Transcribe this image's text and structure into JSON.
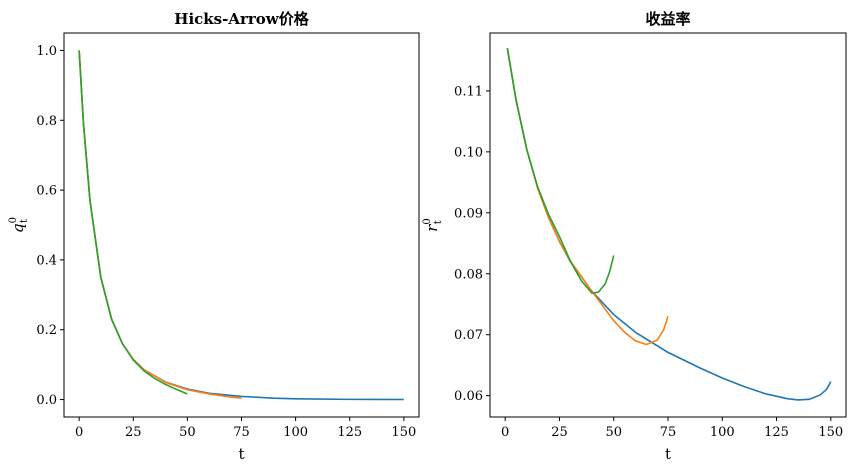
{
  "chart_data": [
    {
      "type": "line",
      "title": "Hicks-Arrow价格",
      "xlabel": "t",
      "ylabel": "q",
      "ylabel_superscript": "0",
      "ylabel_subscript": "t",
      "xlim": [
        -7,
        157
      ],
      "ylim": [
        -0.05,
        1.05
      ],
      "xticks": [
        0,
        25,
        50,
        75,
        100,
        125,
        150
      ],
      "yticks": [
        0.0,
        0.2,
        0.4,
        0.6,
        0.8,
        1.0
      ],
      "xtick_labels": [
        "0",
        "25",
        "50",
        "75",
        "100",
        "125",
        "150"
      ],
      "ytick_labels": [
        "0.0",
        "0.2",
        "0.4",
        "0.6",
        "0.8",
        "1.0"
      ],
      "grid": false,
      "series": [
        {
          "color": "#1f77b4",
          "x": [
            0,
            2,
            5,
            10,
            15,
            20,
            25,
            30,
            40,
            50,
            60,
            75,
            90,
            100,
            125,
            150
          ],
          "y": [
            1.0,
            0.79,
            0.57,
            0.35,
            0.23,
            0.16,
            0.115,
            0.085,
            0.05,
            0.03,
            0.018,
            0.009,
            0.004,
            0.0022,
            0.0005,
            0.0001
          ]
        },
        {
          "color": "#ff7f0e",
          "x": [
            0,
            2,
            5,
            10,
            15,
            20,
            25,
            30,
            40,
            50,
            60,
            70,
            75
          ],
          "y": [
            1.0,
            0.79,
            0.57,
            0.35,
            0.23,
            0.16,
            0.115,
            0.085,
            0.049,
            0.028,
            0.016,
            0.007,
            0.004
          ]
        },
        {
          "color": "#2ca02c",
          "x": [
            0,
            2,
            5,
            10,
            15,
            20,
            25,
            30,
            35,
            40,
            45,
            50
          ],
          "y": [
            1.0,
            0.79,
            0.57,
            0.35,
            0.23,
            0.16,
            0.113,
            0.082,
            0.06,
            0.043,
            0.029,
            0.016
          ]
        }
      ]
    },
    {
      "type": "line",
      "title": "收益率",
      "xlabel": "t",
      "ylabel": "r",
      "ylabel_superscript": "0",
      "ylabel_subscript": "t",
      "xlim": [
        -7,
        157
      ],
      "ylim": [
        0.0565,
        0.1195
      ],
      "xticks": [
        0,
        25,
        50,
        75,
        100,
        125,
        150
      ],
      "yticks": [
        0.06,
        0.07,
        0.08,
        0.09,
        0.1,
        0.11
      ],
      "xtick_labels": [
        "0",
        "25",
        "50",
        "75",
        "100",
        "125",
        "150"
      ],
      "ytick_labels": [
        "0.06",
        "0.07",
        "0.08",
        "0.09",
        "0.10",
        "0.11"
      ],
      "grid": false,
      "series": [
        {
          "color": "#1f77b4",
          "x": [
            1,
            5,
            10,
            15,
            20,
            25,
            30,
            40,
            50,
            60,
            75,
            90,
            100,
            110,
            120,
            130,
            135,
            140,
            145,
            148,
            150
          ],
          "y": [
            0.117,
            0.1085,
            0.1003,
            0.094,
            0.0892,
            0.0853,
            0.082,
            0.0771,
            0.0733,
            0.0704,
            0.0671,
            0.0645,
            0.0629,
            0.0615,
            0.0603,
            0.0595,
            0.0593,
            0.0594,
            0.0601,
            0.061,
            0.0623
          ]
        },
        {
          "color": "#ff7f0e",
          "x": [
            1,
            5,
            10,
            15,
            20,
            25,
            30,
            40,
            50,
            55,
            60,
            65,
            70,
            73,
            75
          ],
          "y": [
            0.117,
            0.1085,
            0.1003,
            0.094,
            0.0892,
            0.0853,
            0.0821,
            0.0771,
            0.0723,
            0.0704,
            0.069,
            0.0684,
            0.0691,
            0.0708,
            0.073
          ]
        },
        {
          "color": "#2ca02c",
          "x": [
            1,
            5,
            10,
            15,
            20,
            25,
            30,
            35,
            40,
            43,
            46,
            48,
            50
          ],
          "y": [
            0.117,
            0.1085,
            0.1003,
            0.0942,
            0.0897,
            0.0861,
            0.0821,
            0.0789,
            0.0768,
            0.077,
            0.0783,
            0.0802,
            0.083
          ]
        }
      ]
    }
  ]
}
